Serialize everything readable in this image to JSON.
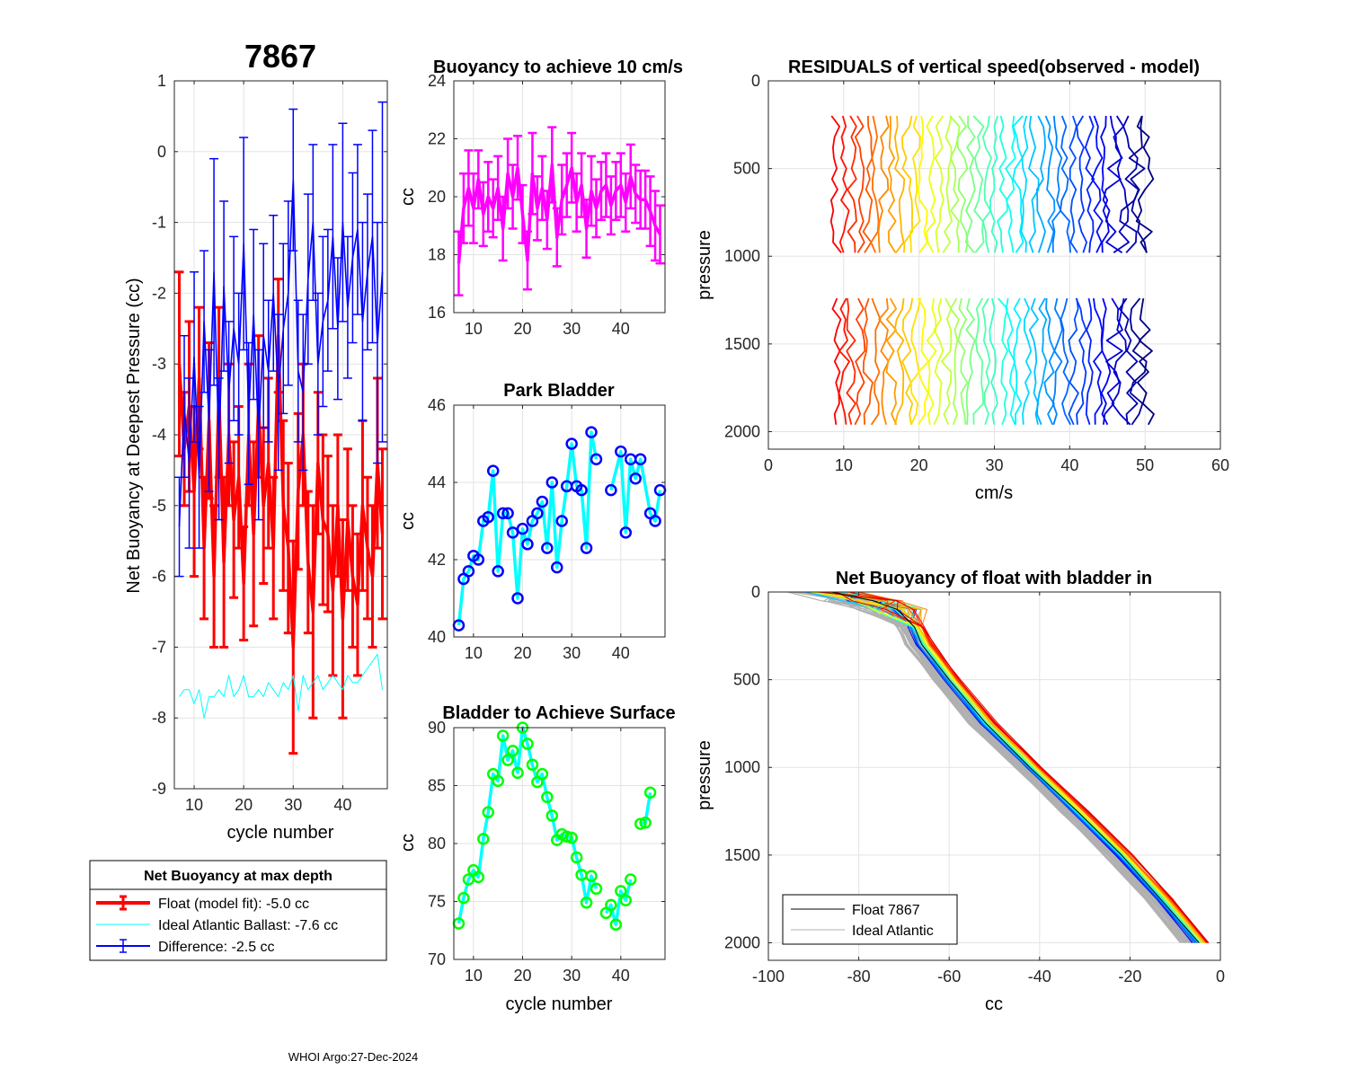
{
  "figure": {
    "float_id": "7867",
    "footer": "WHOI Argo:27-Dec-2024"
  },
  "chart_data": [
    {
      "id": "net_buoyancy",
      "type": "line",
      "title": "",
      "xlabel": "cycle number",
      "ylabel": "Net Buoyancy at Deepest Pressure (cc)",
      "xlim": [
        6,
        49
      ],
      "ylim": [
        -9,
        1
      ],
      "xticks": [
        10,
        20,
        30,
        40
      ],
      "yticks": [
        1,
        0,
        -1,
        -2,
        -3,
        -4,
        -5,
        -6,
        -7,
        -8,
        -9
      ],
      "grid": true,
      "x": [
        7,
        8,
        9,
        10,
        11,
        12,
        13,
        14,
        15,
        16,
        17,
        18,
        19,
        20,
        21,
        22,
        23,
        24,
        25,
        26,
        27,
        28,
        29,
        30,
        31,
        32,
        33,
        34,
        35,
        36,
        37,
        38,
        39,
        40,
        41,
        42,
        43,
        44,
        45,
        46,
        47,
        48
      ],
      "series": [
        {
          "name": "Float (model fit)",
          "color": "#ff0000",
          "errorbars": true,
          "values": [
            -3.0,
            -4.2,
            -3.6,
            -4.8,
            -3.2,
            -5.6,
            -3.8,
            -6.0,
            -3.4,
            -5.8,
            -4.0,
            -5.2,
            -4.6,
            -6.1,
            -4.0,
            -5.4,
            -3.6,
            -5.0,
            -4.4,
            -5.6,
            -2.6,
            -5.0,
            -5.6,
            -7.0,
            -4.8,
            -4.0,
            -5.8,
            -6.5,
            -4.4,
            -5.2,
            -5.4,
            -6.2,
            -5.0,
            -6.6,
            -5.2,
            -6.0,
            -6.4,
            -5.0,
            -5.6,
            -6.0,
            -4.4,
            -5.4
          ],
          "err": [
            1.3,
            0.8,
            1.2,
            1.2,
            1.0,
            1.0,
            1.1,
            1.0,
            1.2,
            1.2,
            1.0,
            1.1,
            1.0,
            0.8,
            1.0,
            1.3,
            1.0,
            1.1,
            1.2,
            1.0,
            0.8,
            1.2,
            1.2,
            1.5,
            1.1,
            1.0,
            1.0,
            1.5,
            1.0,
            1.2,
            1.1,
            1.2,
            1.0,
            1.4,
            1.0,
            1.0,
            1.0,
            1.2,
            1.0,
            1.0,
            1.2,
            1.2
          ]
        },
        {
          "name": "Ideal Atlantic Ballast",
          "color": "#00ffff",
          "errorbars": false,
          "values": [
            -7.7,
            -7.6,
            -7.6,
            -7.8,
            -7.6,
            -8.0,
            -7.7,
            -7.7,
            -7.6,
            -7.7,
            -7.4,
            -7.7,
            -7.6,
            -7.4,
            -7.7,
            -7.7,
            -7.6,
            -7.7,
            -7.5,
            -7.6,
            -7.7,
            -7.5,
            -7.6,
            -7.4,
            -7.9,
            -7.4,
            -7.6,
            -7.5,
            -7.4,
            -7.6,
            -7.5,
            -7.4,
            -7.5,
            -7.6,
            -7.4,
            -7.5,
            -7.5,
            -7.4,
            -7.3,
            -7.2,
            -7.1,
            -7.6
          ]
        },
        {
          "name": "Difference",
          "color": "#0000ff",
          "errorbars": true,
          "values": [
            -5.3,
            -3.6,
            -4.4,
            -2.9,
            -4.6,
            -2.4,
            -3.8,
            -1.7,
            -4.2,
            -1.9,
            -3.4,
            -2.5,
            -3.0,
            -1.3,
            -3.7,
            -2.3,
            -4.0,
            -2.6,
            -3.1,
            -2.0,
            -3.4,
            -2.5,
            -2.0,
            -0.4,
            -3.1,
            -3.4,
            -1.8,
            -1.0,
            -3.0,
            -2.4,
            -2.1,
            -1.2,
            -2.5,
            -1.0,
            -2.2,
            -1.5,
            -1.1,
            -2.4,
            -1.7,
            -1.2,
            -2.7,
            -1.7
          ],
          "err": [
            0.7,
            1.0,
            1.2,
            1.2,
            1.0,
            1.0,
            1.0,
            1.6,
            1.0,
            1.2,
            1.0,
            1.3,
            1.0,
            1.5,
            1.0,
            1.2,
            1.2,
            1.3,
            1.0,
            1.1,
            1.1,
            1.2,
            1.3,
            1.0,
            1.0,
            1.1,
            1.2,
            1.1,
            1.0,
            1.2,
            1.0,
            1.3,
            1.0,
            1.4,
            1.0,
            1.2,
            1.2,
            1.4,
            1.1,
            1.5,
            1.7,
            2.4
          ]
        }
      ],
      "legend": {
        "position": "below",
        "title": "Net Buoyancy at max depth",
        "entries": [
          "Float (model fit):  -5.0 cc",
          "Ideal Atlantic Ballast:  -7.6 cc",
          "Difference:  -2.5 cc"
        ]
      }
    },
    {
      "id": "buoyancy_10cms",
      "type": "line",
      "title": "Buoyancy to achieve 10 cm/s",
      "xlabel": "",
      "ylabel": "cc",
      "xlim": [
        6,
        49
      ],
      "ylim": [
        16,
        24
      ],
      "xticks": [
        10,
        20,
        30,
        40
      ],
      "yticks": [
        16,
        18,
        20,
        22,
        24
      ],
      "grid": true,
      "color": "#ff00ff",
      "errorbars": true,
      "x": [
        7,
        8,
        9,
        10,
        11,
        12,
        13,
        14,
        15,
        16,
        17,
        18,
        19,
        20,
        21,
        22,
        23,
        24,
        25,
        26,
        27,
        28,
        29,
        30,
        31,
        32,
        33,
        34,
        35,
        36,
        37,
        38,
        39,
        40,
        41,
        42,
        43,
        44,
        45,
        46,
        47,
        48
      ],
      "values": [
        17.7,
        19.6,
        20.3,
        19.6,
        20.6,
        19.4,
        20.0,
        19.6,
        20.3,
        18.9,
        20.8,
        20.0,
        21.0,
        19.4,
        17.8,
        20.8,
        19.6,
        20.3,
        19.2,
        21.1,
        18.6,
        19.9,
        20.4,
        21.0,
        19.8,
        20.4,
        18.9,
        20.2,
        19.6,
        20.2,
        20.4,
        19.7,
        20.2,
        20.4,
        19.8,
        20.7,
        20.1,
        19.9,
        19.9,
        19.5,
        19.0,
        18.7
      ],
      "err": [
        1.1,
        1.2,
        1.3,
        1.2,
        1.0,
        1.1,
        1.2,
        1.0,
        1.1,
        1.1,
        1.2,
        1.1,
        1.1,
        1.0,
        1.0,
        1.4,
        1.1,
        1.1,
        1.0,
        1.3,
        1.0,
        1.2,
        1.1,
        1.2,
        1.0,
        1.1,
        1.0,
        1.2,
        1.0,
        1.0,
        1.1,
        1.0,
        1.0,
        1.1,
        1.0,
        1.1,
        1.0,
        1.0,
        1.0,
        1.2,
        1.2,
        1.0
      ]
    },
    {
      "id": "park_bladder",
      "type": "line",
      "title": "Park Bladder",
      "xlabel": "",
      "ylabel": "cc",
      "xlim": [
        6,
        49
      ],
      "ylim": [
        40,
        46
      ],
      "xticks": [
        10,
        20,
        30,
        40
      ],
      "yticks": [
        40,
        42,
        44,
        46
      ],
      "grid": true,
      "line_color": "#00ffff",
      "marker_color": "#0000ff",
      "x": [
        7,
        8,
        9,
        10,
        11,
        12,
        13,
        14,
        15,
        16,
        17,
        18,
        19,
        20,
        21,
        22,
        23,
        24,
        25,
        26,
        27,
        28,
        29,
        30,
        31,
        32,
        33,
        34,
        35,
        36,
        38,
        40,
        41,
        42,
        43,
        44,
        46,
        47,
        48
      ],
      "values": [
        40.3,
        41.5,
        41.7,
        42.1,
        42.0,
        43.0,
        43.1,
        44.3,
        41.7,
        43.2,
        43.2,
        42.7,
        41.0,
        42.8,
        42.4,
        43.0,
        43.2,
        43.5,
        42.3,
        44.0,
        41.8,
        43.0,
        43.9,
        45.0,
        43.9,
        43.8,
        42.3,
        45.3,
        44.6,
        null,
        43.8,
        44.8,
        42.7,
        44.6,
        44.1,
        44.6,
        43.2,
        43.0,
        43.8
      ]
    },
    {
      "id": "bladder_surface",
      "type": "line",
      "title": "Bladder to Achieve Surface",
      "xlabel": "cycle number",
      "ylabel": "cc",
      "xlim": [
        6,
        49
      ],
      "ylim": [
        70,
        90
      ],
      "xticks": [
        10,
        20,
        30,
        40
      ],
      "yticks": [
        70,
        75,
        80,
        85,
        90
      ],
      "grid": true,
      "line_color": "#00ffff",
      "marker_color": "#00ff00",
      "x": [
        7,
        8,
        9,
        10,
        11,
        12,
        13,
        14,
        15,
        16,
        17,
        18,
        19,
        20,
        21,
        22,
        23,
        24,
        25,
        26,
        27,
        28,
        29,
        30,
        31,
        32,
        33,
        34,
        35,
        36,
        37,
        38,
        39,
        40,
        41,
        42,
        43,
        44,
        45,
        46,
        47,
        48
      ],
      "values": [
        73.1,
        75.3,
        76.9,
        77.7,
        77.1,
        80.4,
        82.7,
        86.0,
        85.4,
        89.3,
        87.2,
        88.0,
        86.1,
        90.0,
        88.6,
        86.8,
        85.3,
        86.0,
        84.0,
        82.4,
        80.3,
        80.8,
        80.6,
        80.5,
        78.8,
        77.3,
        74.9,
        77.2,
        76.1,
        null,
        74.0,
        74.7,
        73.0,
        75.9,
        75.1,
        76.9,
        null,
        81.7,
        81.8,
        84.4,
        null,
        null
      ]
    },
    {
      "id": "residuals",
      "type": "line",
      "title": "RESIDUALS of vertical speed(observed - model)",
      "xlabel": "cm/s",
      "ylabel": "pressure",
      "xlim": [
        0,
        60
      ],
      "ylim": [
        0,
        2100
      ],
      "y_reversed": true,
      "xticks": [
        0,
        10,
        20,
        30,
        40,
        50,
        60
      ],
      "yticks": [
        0,
        500,
        1000,
        1500,
        2000
      ],
      "grid": true,
      "profile_count": 40,
      "offset_start": 9,
      "offset_step": 1.05,
      "segments": [
        [
          200,
          1020
        ],
        [
          1240,
          2000
        ]
      ],
      "colormap": "jet (red to blue)"
    },
    {
      "id": "net_buoyancy_profile",
      "type": "line",
      "title": "Net Buoyancy of float with bladder in",
      "xlabel": "cc",
      "ylabel": "pressure",
      "xlim": [
        -100,
        0
      ],
      "ylim": [
        0,
        2100
      ],
      "y_reversed": true,
      "xticks": [
        -100,
        -80,
        -60,
        -40,
        -20,
        0
      ],
      "yticks": [
        0,
        500,
        1000,
        1500,
        2000
      ],
      "grid": true,
      "profile_pressure": [
        0,
        50,
        100,
        200,
        300,
        500,
        750,
        1000,
        1250,
        1500,
        1750,
        2000
      ],
      "profile_cc": [
        -86,
        -78,
        -72,
        -68,
        -66,
        -60,
        -52,
        -42,
        -32,
        -22,
        -13,
        -5
      ],
      "legend": {
        "position": "bottom-left",
        "entries": [
          "Float 7867",
          "Ideal Atlantic"
        ]
      },
      "colors": {
        "float": "#000000",
        "ideal": "#b0b0b0"
      }
    }
  ]
}
